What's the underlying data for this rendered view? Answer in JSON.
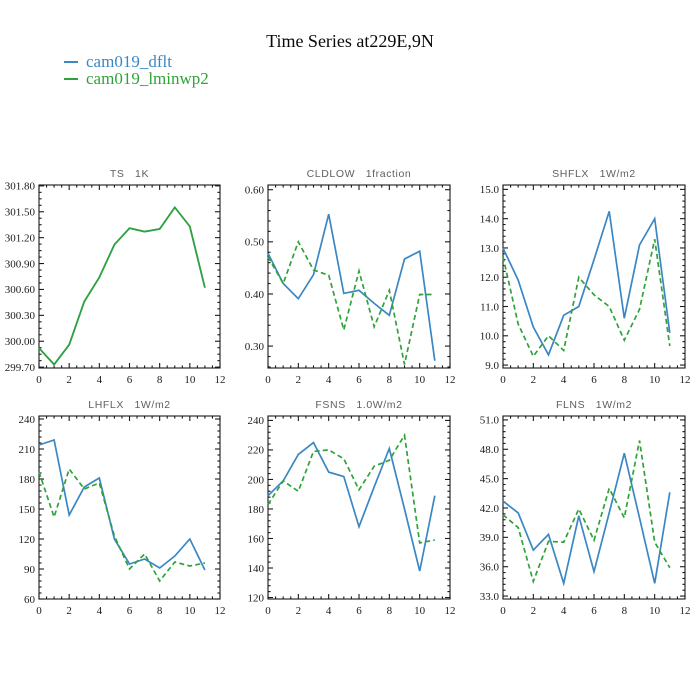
{
  "title": "Time Series at229E,9N",
  "legend": {
    "items": [
      {
        "label": "cam019_dflt",
        "color": "#3a87c4",
        "style": "solid"
      },
      {
        "label": "cam019_lminwp2",
        "color": "#2fa339",
        "style": "dashed"
      }
    ]
  },
  "colors": {
    "axis": "#1a1a1a",
    "subplot_title": "#5f5f5f",
    "blue": "#3a87c4",
    "green": "#2fa339"
  },
  "chart_data": [
    {
      "key": "TS",
      "type": "line",
      "title": "TS   1K",
      "x": [
        0,
        1,
        2,
        3,
        4,
        5,
        6,
        7,
        8,
        9,
        10,
        11
      ],
      "xlim": [
        0,
        12
      ],
      "xticks": [
        0,
        2,
        4,
        6,
        8,
        10,
        12
      ],
      "ylim": [
        299.69,
        301.81
      ],
      "yticks": [
        299.7,
        300.0,
        300.3,
        300.6,
        300.9,
        301.2,
        301.5,
        301.8
      ],
      "ytick_labels": [
        "299.70",
        "300.00",
        "300.30",
        "300.60",
        "300.90",
        "301.20",
        "301.50",
        "301.80"
      ],
      "yminor_div": 4,
      "grid": false,
      "series": [
        {
          "name": "cam019_dflt",
          "color": "#3a87c4",
          "dashed": false,
          "values": [
            299.92,
            299.73,
            299.96,
            300.46,
            300.74,
            301.12,
            301.31,
            301.27,
            301.3,
            301.55,
            301.33,
            300.62
          ]
        },
        {
          "name": "cam019_lminwp2",
          "color": "#2fa339",
          "dashed": false,
          "values": [
            299.92,
            299.73,
            299.96,
            300.46,
            300.74,
            301.12,
            301.31,
            301.27,
            301.3,
            301.55,
            301.33,
            300.62
          ]
        }
      ]
    },
    {
      "key": "CLDLOW",
      "type": "line",
      "title": "CLDLOW   1fraction",
      "x": [
        0,
        1,
        2,
        3,
        4,
        5,
        6,
        7,
        8,
        9,
        10,
        11
      ],
      "xlim": [
        0,
        12
      ],
      "xticks": [
        0,
        2,
        4,
        6,
        8,
        10,
        12
      ],
      "ylim": [
        0.258,
        0.609
      ],
      "yticks": [
        0.3,
        0.4,
        0.5,
        0.6
      ],
      "ytick_labels": [
        "0.30",
        "0.40",
        "0.50",
        "0.60"
      ],
      "yminor_div": 5,
      "grid": false,
      "series": [
        {
          "name": "cam019_dflt",
          "color": "#3a87c4",
          "dashed": false,
          "values": [
            0.478,
            0.42,
            0.391,
            0.437,
            0.553,
            0.401,
            0.407,
            0.382,
            0.359,
            0.467,
            0.482,
            0.272
          ]
        },
        {
          "name": "cam019_lminwp2",
          "color": "#2fa339",
          "dashed": true,
          "values": [
            0.471,
            0.42,
            0.5,
            0.446,
            0.436,
            0.331,
            0.444,
            0.337,
            0.407,
            0.265,
            0.399,
            0.399
          ]
        }
      ]
    },
    {
      "key": "SHFLX",
      "type": "line",
      "title": "SHFLX   1W/m2",
      "x": [
        0,
        1,
        2,
        3,
        4,
        5,
        6,
        7,
        8,
        9,
        10,
        11
      ],
      "xlim": [
        0,
        12
      ],
      "xticks": [
        0,
        2,
        4,
        6,
        8,
        10,
        12
      ],
      "ylim": [
        8.9,
        15.15
      ],
      "yticks": [
        9.0,
        10.0,
        11.0,
        12.0,
        13.0,
        14.0,
        15.0
      ],
      "ytick_labels": [
        "9.0",
        "10.0",
        "11.0",
        "12.0",
        "13.0",
        "14.0",
        "15.0"
      ],
      "yminor_div": 5,
      "grid": false,
      "series": [
        {
          "name": "cam019_dflt",
          "color": "#3a87c4",
          "dashed": false,
          "values": [
            13.0,
            11.9,
            10.3,
            9.35,
            10.7,
            11.0,
            12.6,
            14.25,
            10.6,
            13.1,
            14.0,
            10.1
          ]
        },
        {
          "name": "cam019_lminwp2",
          "color": "#2fa339",
          "dashed": true,
          "values": [
            12.7,
            10.4,
            9.3,
            10.0,
            9.5,
            12.0,
            11.4,
            11.0,
            9.85,
            10.9,
            13.3,
            9.65
          ]
        }
      ]
    },
    {
      "key": "LHFLX",
      "type": "line",
      "title": "LHFLX   1W/m2",
      "x": [
        0,
        1,
        2,
        3,
        4,
        5,
        6,
        7,
        8,
        9,
        10,
        11
      ],
      "xlim": [
        0,
        12
      ],
      "xticks": [
        0,
        2,
        4,
        6,
        8,
        10,
        12
      ],
      "ylim": [
        60,
        243
      ],
      "yticks": [
        60,
        90,
        120,
        150,
        180,
        210,
        240
      ],
      "ytick_labels": [
        "60",
        "90",
        "120",
        "150",
        "180",
        "210",
        "240"
      ],
      "yminor_div": 5,
      "grid": false,
      "series": [
        {
          "name": "cam019_dflt",
          "color": "#3a87c4",
          "dashed": false,
          "values": [
            214,
            219,
            144,
            172,
            181,
            120,
            95,
            100,
            91,
            103,
            120,
            89
          ]
        },
        {
          "name": "cam019_lminwp2",
          "color": "#2fa339",
          "dashed": true,
          "values": [
            187,
            142,
            190,
            170,
            176,
            123,
            90,
            105,
            78,
            97,
            93,
            96
          ]
        }
      ]
    },
    {
      "key": "FSNS",
      "type": "line",
      "title": "FSNS   1.0W/m2",
      "x": [
        0,
        1,
        2,
        3,
        4,
        5,
        6,
        7,
        8,
        9,
        10,
        11
      ],
      "xlim": [
        0,
        12
      ],
      "xticks": [
        0,
        2,
        4,
        6,
        8,
        10,
        12
      ],
      "ylim": [
        119,
        243
      ],
      "yticks": [
        120,
        140,
        160,
        180,
        200,
        220,
        240
      ],
      "ytick_labels": [
        "120",
        "140",
        "160",
        "180",
        "200",
        "220",
        "240"
      ],
      "yminor_div": 5,
      "grid": false,
      "series": [
        {
          "name": "cam019_dflt",
          "color": "#3a87c4",
          "dashed": false,
          "values": [
            189,
            199,
            217,
            225,
            205,
            202,
            168,
            195,
            221,
            180,
            138,
            189
          ]
        },
        {
          "name": "cam019_lminwp2",
          "color": "#2fa339",
          "dashed": true,
          "values": [
            183,
            199,
            192,
            219,
            220,
            214,
            193,
            209,
            213,
            230,
            157,
            159
          ]
        }
      ]
    },
    {
      "key": "FLNS",
      "type": "line",
      "title": "FLNS   1W/m2",
      "x": [
        0,
        1,
        2,
        3,
        4,
        5,
        6,
        7,
        8,
        9,
        10,
        11
      ],
      "xlim": [
        0,
        12
      ],
      "xticks": [
        0,
        2,
        4,
        6,
        8,
        10,
        12
      ],
      "ylim": [
        32.7,
        51.4
      ],
      "yticks": [
        33.0,
        36.0,
        39.0,
        42.0,
        45.0,
        48.0,
        51.0
      ],
      "ytick_labels": [
        "33.0",
        "36.0",
        "39.0",
        "42.0",
        "45.0",
        "48.0",
        "51.0"
      ],
      "yminor_div": 5,
      "grid": false,
      "series": [
        {
          "name": "cam019_dflt",
          "color": "#3a87c4",
          "dashed": false,
          "values": [
            42.7,
            41.5,
            37.7,
            39.3,
            34.3,
            41.2,
            35.5,
            41.5,
            47.6,
            41.0,
            34.3,
            43.6
          ]
        },
        {
          "name": "cam019_lminwp2",
          "color": "#2fa339",
          "dashed": true,
          "values": [
            41.3,
            40.0,
            34.5,
            38.6,
            38.5,
            41.9,
            38.7,
            44.0,
            41.0,
            48.9,
            38.5,
            35.9
          ]
        }
      ]
    }
  ]
}
